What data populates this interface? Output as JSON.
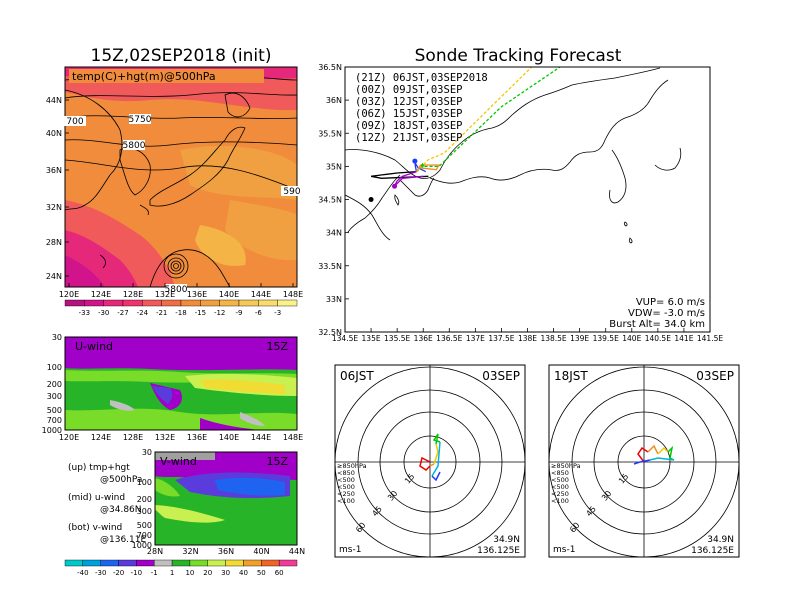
{
  "main_title": "Sonde Tracking Forecast",
  "left_title": "15Z,02SEP2018 (init)",
  "upper_panel": {
    "label": "temp(C)+hgt(m)@500hPa",
    "contour_labels": [
      "700",
      "5750",
      "5800",
      "590",
      "5800"
    ],
    "lat_ticks": [
      "44N",
      "40N",
      "36N",
      "32N",
      "28N",
      "24N"
    ],
    "lon_ticks": [
      "120E",
      "124E",
      "128E",
      "132E",
      "136E",
      "140E",
      "144E",
      "148E"
    ],
    "colorbar_labels": [
      "-33",
      "-30",
      "-27",
      "-24",
      "-21",
      "-18",
      "-15",
      "-12",
      "-9",
      "-6",
      "-3"
    ],
    "colorbar_colors": [
      "#b4147d",
      "#d2148c",
      "#e6287a",
      "#f0326e",
      "#f05a5a",
      "#f06e46",
      "#f08c3c",
      "#f0a040",
      "#f5b446",
      "#f5c85a",
      "#fadc6e",
      "#faf08c"
    ]
  },
  "uwind_panel": {
    "label": "U-wind",
    "time": "15Z",
    "p_ticks": [
      "30",
      "100",
      "200",
      "300",
      "500",
      "700",
      "1000"
    ],
    "lon_ticks": [
      "120E",
      "124E",
      "128E",
      "132E",
      "136E",
      "140E",
      "144E",
      "148E"
    ]
  },
  "vwind_panel": {
    "label": "V-wind",
    "time": "15Z",
    "p_ticks": [
      "30",
      "100",
      "200",
      "300",
      "500",
      "700",
      "1000"
    ],
    "lat_ticks": [
      "28N",
      "32N",
      "36N",
      "40N",
      "44N"
    ]
  },
  "notes": {
    "up": [
      "(up)  tmp+hgt",
      "@500hPa"
    ],
    "mid": [
      "(mid)  u-wind",
      "@34.86N"
    ],
    "bot": [
      "(bot)  v-wind",
      "@136.11E"
    ]
  },
  "wind_colorbar": {
    "labels": [
      "-40",
      "-30",
      "-20",
      "-10",
      "-1",
      "1",
      "10",
      "20",
      "30",
      "40",
      "50",
      "60"
    ],
    "colors": [
      "#00c8c8",
      "#00a0dc",
      "#1e64f0",
      "#5a3cdc",
      "#a000c8",
      "#c0c0c0",
      "#28b428",
      "#78dc28",
      "#c8f050",
      "#f0dc32",
      "#f0a028",
      "#f06428",
      "#f03c96"
    ]
  },
  "map": {
    "lat_ticks": [
      "36.5N",
      "36N",
      "35.5N",
      "35N",
      "34.5N",
      "34N",
      "33.5N",
      "33N",
      "32.5N"
    ],
    "lon_ticks": [
      "134.5E",
      "135E",
      "135.5E",
      "136E",
      "136.5E",
      "137E",
      "137.5E",
      "138E",
      "138.5E",
      "139E",
      "139.5E",
      "140E",
      "140.5E",
      "141E",
      "141.5E"
    ],
    "legend": [
      {
        "text": "(21Z)  06JST,03SEP2018",
        "color": "#000000"
      },
      {
        "text": "(00Z)  09JST,03SEP",
        "color": "#a000c8"
      },
      {
        "text": "(03Z)  12JST,03SEP",
        "color": "#1e3cff"
      },
      {
        "text": "(06Z)  15JST,03SEP",
        "color": "#00c800"
      },
      {
        "text": "(09Z)  18JST,03SEP",
        "color": "#f0c800"
      },
      {
        "text": "(12Z)  21JST,03SEP",
        "color": "#f08c28"
      }
    ],
    "vup": "VUP=  6.0 m/s",
    "vdw": "VDW= -3.0 m/s",
    "burst": "Burst Alt= 34.0 km"
  },
  "hodo_left": {
    "time": "06JST",
    "date": "03SEP",
    "lat": "34.9N",
    "lon": "136.125E",
    "unit": "ms-1",
    "ring_labels": [
      "15",
      "30",
      "45",
      "60"
    ],
    "levels": [
      {
        "text": "≥850hPa",
        "color": "#f00000"
      },
      {
        "text": "<850",
        "color": "#f08c28"
      },
      {
        "text": "<500",
        "color": "#f0c800"
      },
      {
        "text": "<500",
        "color": "#00c800"
      },
      {
        "text": "<250",
        "color": "#00b4dc"
      },
      {
        "text": "<100",
        "color": "#1e3cff"
      }
    ]
  },
  "hodo_right": {
    "time": "18JST",
    "date": "03SEP",
    "lat": "34.9N",
    "lon": "136.125E",
    "unit": "ms-1",
    "ring_labels": [
      "15",
      "30",
      "45",
      "60"
    ],
    "levels": [
      {
        "text": "≥850hPa",
        "color": "#f00000"
      },
      {
        "text": "<850",
        "color": "#f08c28"
      },
      {
        "text": "<500",
        "color": "#f0c800"
      },
      {
        "text": "<500",
        "color": "#00c800"
      },
      {
        "text": "<250",
        "color": "#00b4dc"
      },
      {
        "text": "<100",
        "color": "#1e3cff"
      }
    ]
  },
  "chart_data": [
    {
      "type": "heatmap",
      "title": "15Z,02SEP2018 (init)",
      "subtitle": "temp(C)+hgt(m)@500hPa",
      "xlim": [
        "120E",
        "148E"
      ],
      "ylim": [
        "24N",
        "44N"
      ]
    },
    {
      "type": "heatmap",
      "title": "U-wind",
      "xlim": [
        "120E",
        "148E"
      ],
      "ylim": [
        1000,
        30
      ]
    },
    {
      "type": "heatmap",
      "title": "V-wind",
      "xlim": [
        "28N",
        "44N"
      ],
      "ylim": [
        1000,
        30
      ]
    },
    {
      "type": "line",
      "title": "Sonde Tracking Forecast",
      "xlim": [
        134.5,
        141.5
      ],
      "ylim": [
        32.5,
        36.5
      ]
    }
  ]
}
